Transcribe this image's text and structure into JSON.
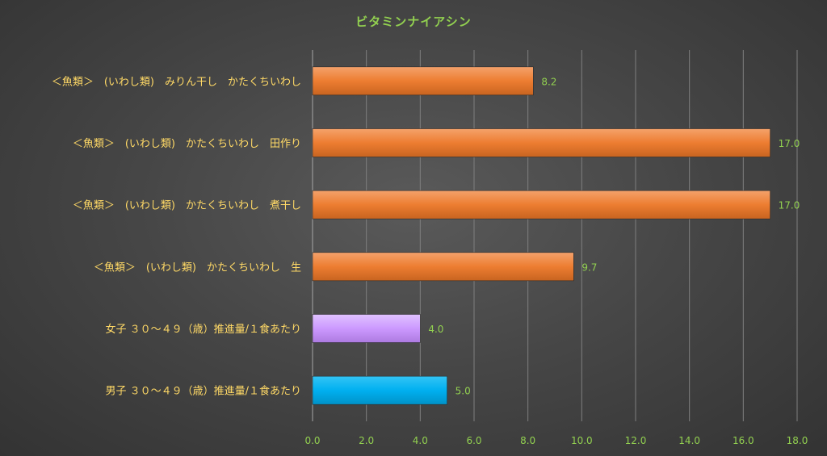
{
  "chart_data": {
    "type": "bar",
    "orientation": "horizontal",
    "title": "ビタミンナイアシン",
    "categories": [
      "＜魚類＞　(いわし類)　みりん干し　かたくちいわし",
      "＜魚類＞　(いわし類)　かたくちいわし　田作り",
      "＜魚類＞　(いわし類)　かたくちいわし　煮干し",
      "＜魚類＞　(いわし類)　かたくちいわし　生",
      "女子 ３０～４９（歳）推進量/１食あたり",
      "男子 ３０～４９（歳）推進量/１食あたり"
    ],
    "values": [
      8.2,
      17.0,
      17.0,
      9.7,
      4.0,
      5.0
    ],
    "data_labels": [
      "8.2",
      "17.0",
      "17.0",
      "9.7",
      "4.0",
      "5.0"
    ],
    "bar_colors": [
      "#ed7d31",
      "#ed7d31",
      "#ed7d31",
      "#ed7d31",
      "#cc99ff",
      "#00b0f0"
    ],
    "xlim": [
      0,
      18
    ],
    "x_ticks": [
      "0.0",
      "2.0",
      "4.0",
      "6.0",
      "8.0",
      "10.0",
      "12.0",
      "14.0",
      "16.0",
      "18.0"
    ],
    "xlabel": "",
    "ylabel": "",
    "grid": true,
    "legend": "none"
  },
  "colors": {
    "title": "#92d050",
    "category_labels": "#ffd966",
    "tick_labels": "#92d050",
    "data_labels": "#92d050",
    "gridlines": "#7f7f7f"
  }
}
